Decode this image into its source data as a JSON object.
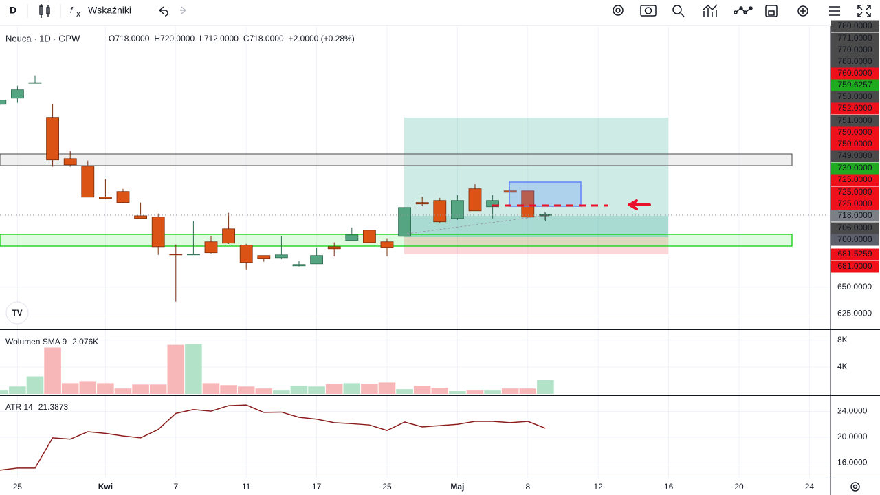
{
  "toolbar": {
    "interval": "D",
    "indicators": "Wskaźniki"
  },
  "legend": {
    "symbol": "Neuca · 1D · GPW",
    "ohlc": [
      {
        "key": "O",
        "value": "718.0000"
      },
      {
        "key": "H",
        "value": "720.0000"
      },
      {
        "key": "L",
        "value": "712.0000"
      },
      {
        "key": "C",
        "value": "718.0000"
      }
    ],
    "change": "+2.0000 (+0.28%)"
  },
  "price_badges": [
    {
      "label": "780.0000",
      "color": "#4a4a4a"
    },
    {
      "label": "771.0000",
      "color": "#4a4a4a"
    },
    {
      "label": "770.0000",
      "color": "#4a4a4a"
    },
    {
      "label": "768.0000",
      "color": "#4a4a4a"
    },
    {
      "label": "760.0000",
      "color": "#f0101c"
    },
    {
      "label": "759.6257",
      "color": "#1faa1f"
    },
    {
      "label": "753.0000",
      "color": "#4a4a4a"
    },
    {
      "label": "752.0000",
      "color": "#f0101c"
    },
    {
      "label": "751.0000",
      "color": "#4a4a4a"
    },
    {
      "label": "750.0000",
      "color": "#f0101c"
    },
    {
      "label": "750.0000",
      "color": "#f0101c"
    },
    {
      "label": "749.0000",
      "color": "#4a4a4a"
    },
    {
      "label": "739.0000",
      "color": "#1faa1f"
    },
    {
      "label": "725.0000",
      "color": "#f0101c"
    },
    {
      "label": "725.0000",
      "color": "#f0101c"
    },
    {
      "label": "725.0000",
      "color": "#f0101c"
    },
    {
      "label": "718.0000",
      "color": "#7d7f86"
    },
    {
      "label": "706.0000",
      "color": "#4a4a4a"
    },
    {
      "label": "700.0000",
      "color": "#5d606b"
    },
    {
      "label": "681.5259",
      "color": "#f0101c"
    },
    {
      "label": "681.0000",
      "color": "#f0101c"
    }
  ],
  "chart_data": [
    {
      "type": "candlestick",
      "categories": [
        null,
        "25",
        null,
        null,
        null,
        null,
        "Kwi",
        null,
        null,
        null,
        "7",
        null,
        null,
        null,
        "11",
        null,
        null,
        null,
        "17",
        null,
        null,
        null,
        "25",
        null,
        null,
        null,
        "Maj",
        null,
        null,
        null,
        "8",
        null,
        null,
        null,
        "12",
        null,
        null,
        null,
        "16",
        null,
        null,
        null,
        "20",
        null,
        null,
        null,
        "24"
      ],
      "open": [
        821.6,
        827.4,
        841.5,
        809.4,
        770.6,
        763.5,
        734.5,
        739.7,
        717,
        715.8,
        681,
        680.3,
        692.6,
        704.8,
        689.4,
        679.7,
        677.7,
        670,
        671.9,
        688,
        693.9,
        703.5,
        692.6,
        697.7,
        729.4,
        731.3,
        714.5,
        742.3,
        725.5,
        740.3,
        740.3,
        718,
        null,
        null,
        null,
        null,
        null,
        null,
        null,
        null,
        null,
        null,
        null,
        null,
        null,
        null,
        null
      ],
      "high": [
        826,
        839,
        848.7,
        821.6,
        777.7,
        768.7,
        751.3,
        742.3,
        729.4,
        719,
        690,
        712,
        697.7,
        719.7,
        690.6,
        679.7,
        697.7,
        674.5,
        687.4,
        692,
        706,
        703.5,
        695.8,
        724.8,
        735,
        733.9,
        736.5,
        746.8,
        736.5,
        740.3,
        740.3,
        720,
        null,
        null,
        null,
        null,
        null,
        null,
        null,
        null,
        null,
        null,
        null,
        null,
        null,
        null,
        null
      ],
      "low": [
        821,
        823,
        841.5,
        763,
        763,
        734.5,
        732.6,
        729,
        714.5,
        680.3,
        636.5,
        680.3,
        681.6,
        690.6,
        666.8,
        673.9,
        676.5,
        669.4,
        671.9,
        679,
        693.9,
        691.9,
        679,
        697.7,
        726,
        710,
        713.2,
        721.6,
        714.5,
        739,
        715.2,
        712,
        null,
        null,
        null,
        null,
        null,
        null,
        null,
        null,
        null,
        null,
        null,
        null,
        null,
        null,
        null
      ],
      "close": [
        825.5,
        835.2,
        842,
        769.4,
        764.8,
        734.5,
        733.2,
        729.4,
        714.5,
        688,
        680.3,
        681,
        682.3,
        691.3,
        673.2,
        677.1,
        680.3,
        671.3,
        679.7,
        686.1,
        699,
        691.9,
        687.4,
        724.8,
        728.1,
        711.3,
        731.3,
        721.6,
        731.3,
        739,
        715.8,
        718,
        null,
        null,
        null,
        null,
        null,
        null,
        null,
        null,
        null,
        null,
        null,
        null,
        null,
        null,
        null
      ],
      "up_color": "#55a583",
      "down_color": "#dc5316",
      "ylim": [
        610.5,
        895
      ],
      "yticks": [
        {
          "value": 625,
          "label": "625.0000"
        },
        {
          "value": 650,
          "label": "650.0000"
        }
      ],
      "grid": true
    },
    {
      "type": "bar",
      "title": "Wolumen SMA 9",
      "legend_value": "2.076K",
      "values": [
        600,
        1100,
        2600,
        6900,
        1600,
        1900,
        1600,
        800,
        1400,
        1400,
        7300,
        7400,
        1600,
        1300,
        1100,
        800,
        600,
        1200,
        1100,
        1500,
        1600,
        1500,
        1700,
        700,
        1200,
        900,
        500,
        600,
        600,
        800,
        800,
        2100,
        null,
        null,
        null,
        null,
        null,
        null,
        null,
        null,
        null,
        null,
        null,
        null,
        null,
        null,
        null
      ],
      "up_color": "#b2e3c9",
      "down_color": "#f7b7b9",
      "ylim": [
        0,
        9300
      ],
      "yticks": [
        {
          "value": 4000,
          "label": "4K"
        },
        {
          "value": 8000,
          "label": "8K"
        }
      ]
    },
    {
      "type": "line",
      "title": "ATR 14",
      "legend_value": "21.3873",
      "values": [
        14.88,
        15.2,
        15.2,
        19.9,
        19.7,
        20.85,
        20.6,
        20.2,
        19.9,
        21.2,
        23.7,
        24.3,
        24.05,
        24.9,
        25.0,
        23.85,
        23.9,
        23.1,
        22.8,
        22.25,
        22.1,
        21.9,
        21.05,
        22.35,
        21.6,
        21.8,
        22.0,
        22.45,
        22.45,
        22.25,
        22.45,
        21.39,
        null,
        null,
        null,
        null,
        null,
        null,
        null,
        null,
        null,
        null,
        null,
        null,
        null,
        null,
        null
      ],
      "color": "#8b1d1d",
      "ylim": [
        13.8,
        26.3
      ],
      "yticks": [
        {
          "value": 16,
          "label": "16.0000"
        },
        {
          "value": 20,
          "label": "20.0000"
        },
        {
          "value": 24,
          "label": "24.0000"
        }
      ]
    }
  ]
}
